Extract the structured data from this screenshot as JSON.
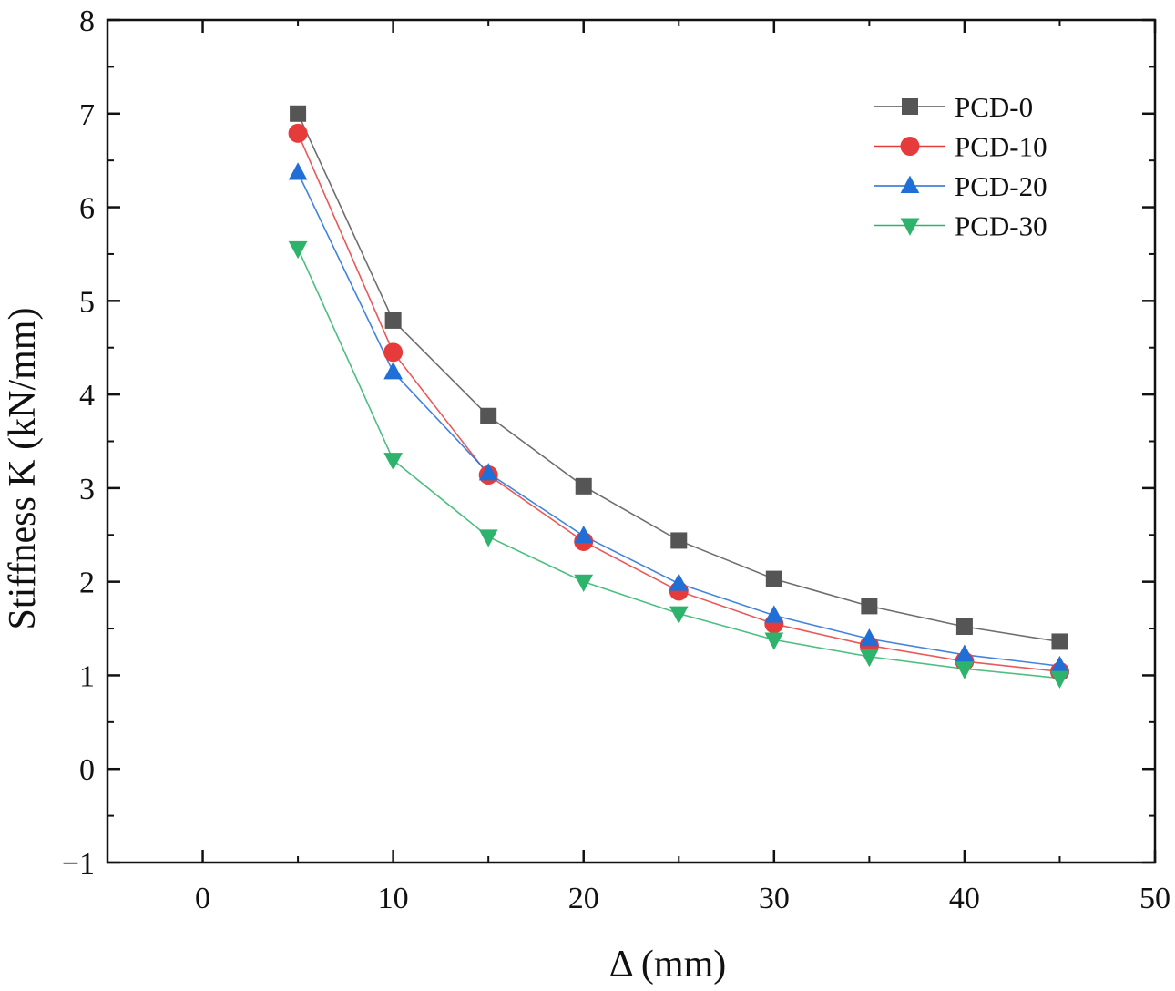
{
  "chart_data": {
    "type": "line",
    "title": "",
    "xlabel": "Δ (mm)",
    "ylabel": "Stiffness K (kN/mm)",
    "xlim": [
      -5,
      50
    ],
    "ylim": [
      -1,
      8
    ],
    "xticks": [
      0,
      10,
      20,
      30,
      40,
      50
    ],
    "yticks": [
      -1,
      0,
      1,
      2,
      3,
      4,
      5,
      6,
      7,
      8
    ],
    "x_tick_labels": [
      "0",
      "10",
      "20",
      "30",
      "40",
      "50"
    ],
    "y_tick_labels": [
      "−1",
      "0",
      "1",
      "2",
      "3",
      "4",
      "5",
      "6",
      "7",
      "8"
    ],
    "grid": false,
    "legend_position": "top-right",
    "x": [
      5,
      10,
      15,
      20,
      25,
      30,
      35,
      40,
      45
    ],
    "series": [
      {
        "name": "PCD-0",
        "marker": "square",
        "color": "#555555",
        "values": [
          7.0,
          4.79,
          3.77,
          3.02,
          2.44,
          2.03,
          1.74,
          1.52,
          1.36
        ]
      },
      {
        "name": "PCD-10",
        "marker": "circle",
        "color": "#e63b3b",
        "values": [
          6.79,
          4.45,
          3.14,
          2.43,
          1.9,
          1.55,
          1.32,
          1.15,
          1.04
        ]
      },
      {
        "name": "PCD-20",
        "marker": "triangle-up",
        "color": "#1f6fd6",
        "values": [
          6.37,
          4.24,
          3.16,
          2.49,
          1.98,
          1.64,
          1.39,
          1.22,
          1.1
        ]
      },
      {
        "name": "PCD-30",
        "marker": "triangle-down",
        "color": "#2db36b",
        "values": [
          5.56,
          3.3,
          2.48,
          2.0,
          1.66,
          1.38,
          1.2,
          1.07,
          0.97
        ]
      }
    ]
  }
}
